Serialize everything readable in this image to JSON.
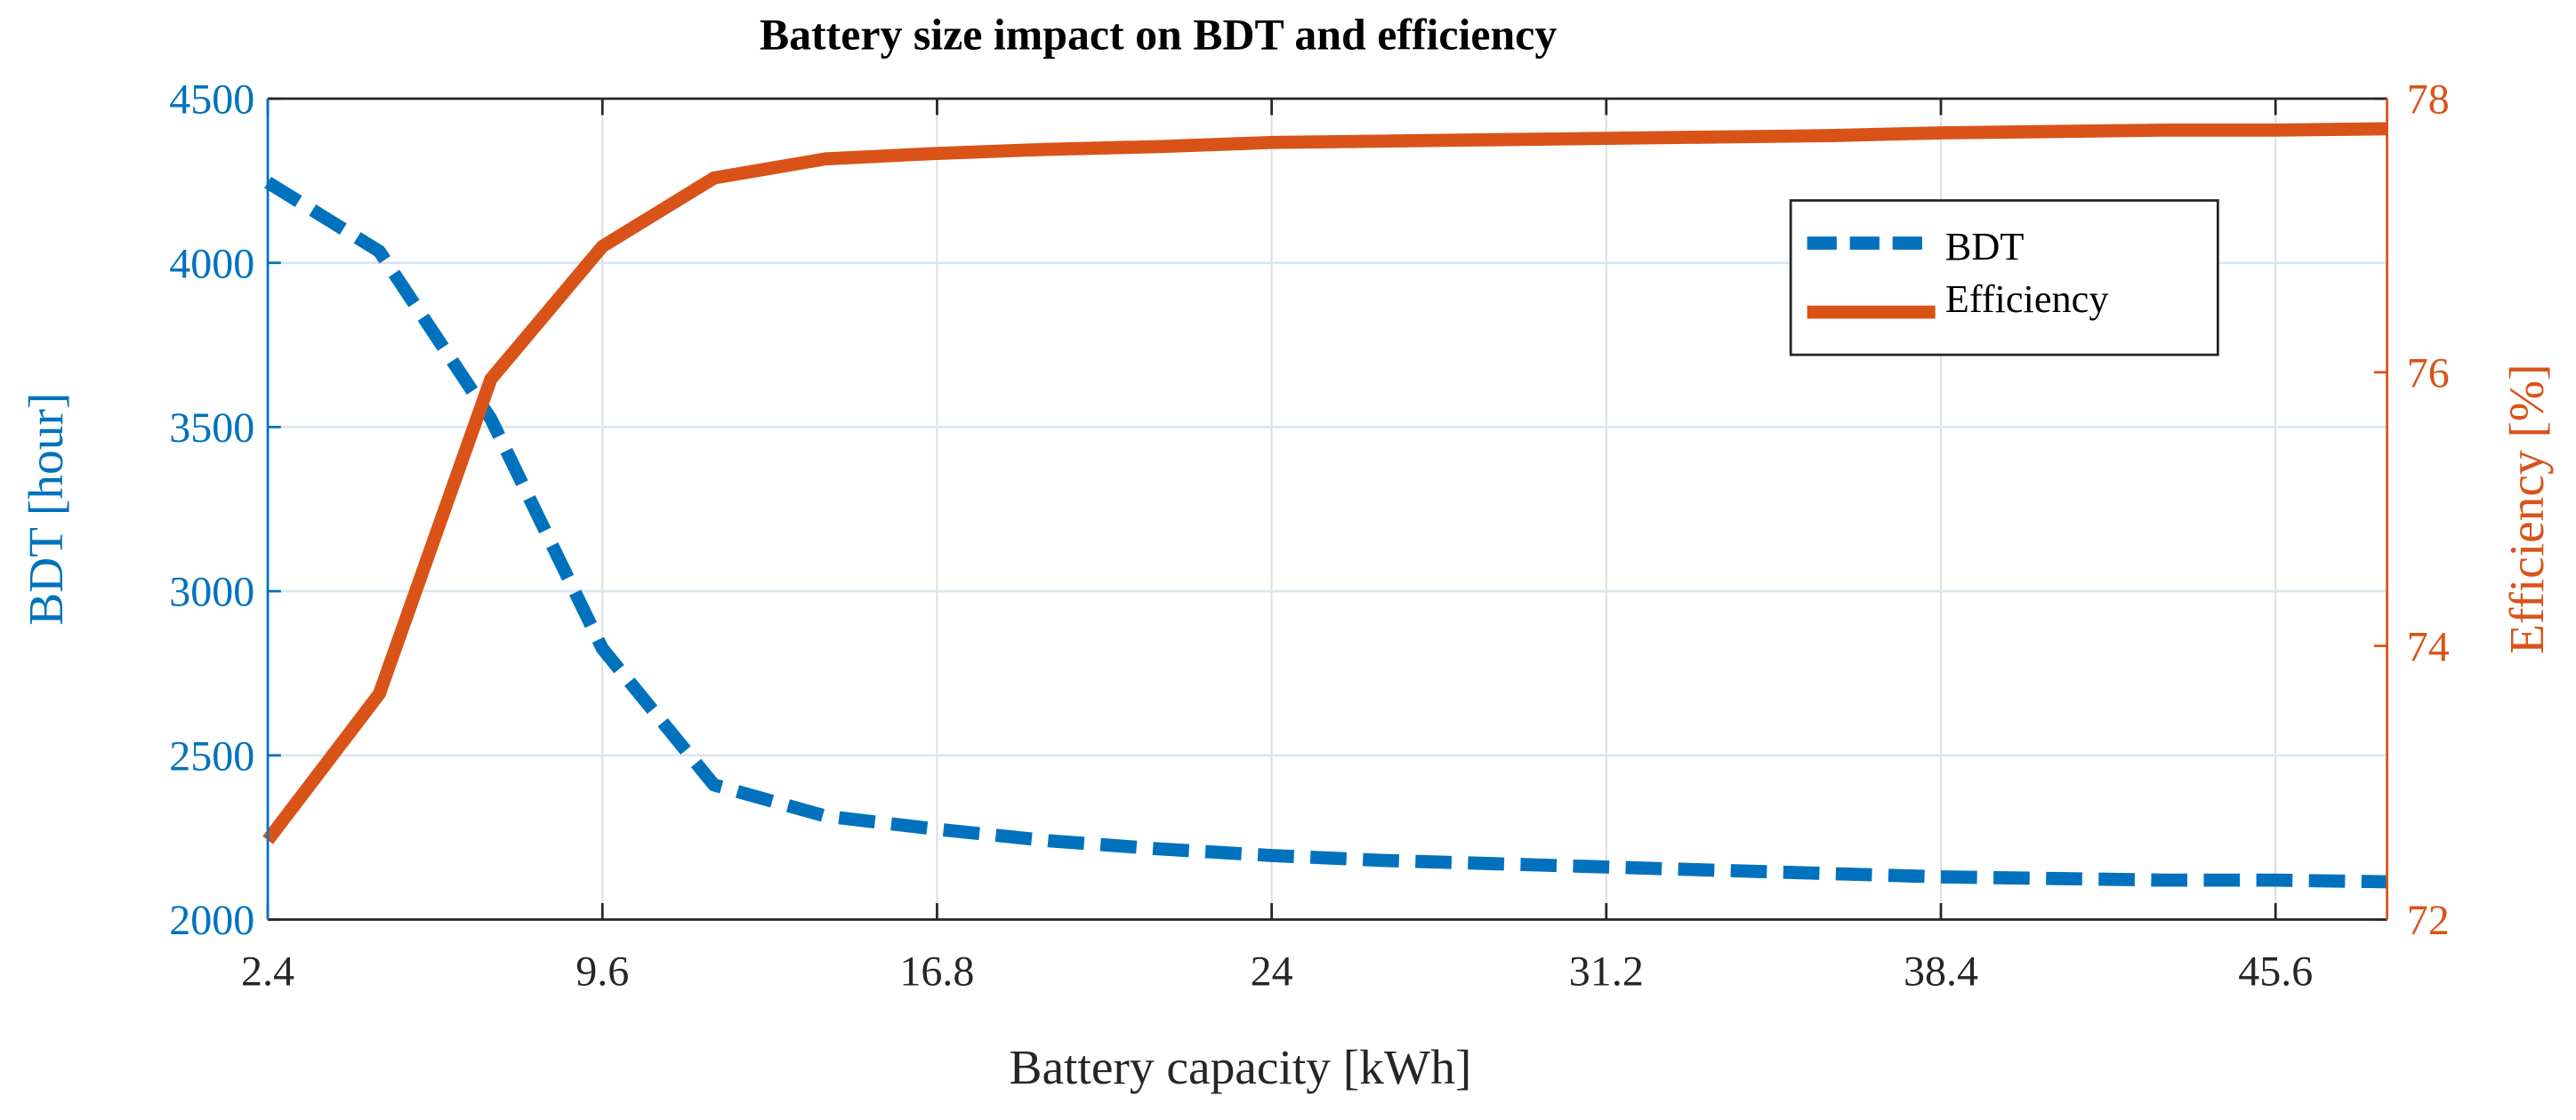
{
  "chart_data": {
    "type": "line",
    "title": "Battery size impact on BDT and efficiency",
    "xlabel": "Battery capacity [kWh]",
    "ylabel_left": "BDT [hour]",
    "ylabel_right": "Efficiency [%]",
    "xlim": [
      2.4,
      48
    ],
    "ylim_left": [
      2000,
      4500
    ],
    "ylim_right": [
      72,
      78
    ],
    "xticks": [
      "2.4",
      "9.6",
      "16.8",
      "24",
      "31.2",
      "38.4",
      "45.6"
    ],
    "yticks_left": [
      "2000",
      "2500",
      "3000",
      "3500",
      "4000",
      "4500"
    ],
    "yticks_right": [
      "72",
      "74",
      "76",
      "78"
    ],
    "grid": true,
    "legend_position": "top-right",
    "x": [
      2.4,
      4.8,
      7.2,
      9.6,
      12,
      14.4,
      16.8,
      19.2,
      21.6,
      24,
      26.4,
      28.8,
      31.2,
      33.6,
      36,
      38.4,
      40.8,
      43.2,
      45.6,
      48
    ],
    "series": [
      {
        "name": "BDT",
        "axis": "left",
        "style": "dashed",
        "color": "#0072BD",
        "values": [
          4245,
          4035,
          3525,
          2825,
          2410,
          2315,
          2275,
          2240,
          2215,
          2195,
          2180,
          2170,
          2160,
          2150,
          2140,
          2130,
          2125,
          2120,
          2120,
          2115
        ]
      },
      {
        "name": "Efficiency",
        "axis": "right",
        "style": "solid",
        "color": "#D95319",
        "values": [
          72.58,
          73.65,
          75.95,
          76.92,
          77.42,
          77.56,
          77.6,
          77.63,
          77.65,
          77.68,
          77.69,
          77.7,
          77.71,
          77.72,
          77.73,
          77.75,
          77.76,
          77.77,
          77.77,
          77.78
        ]
      }
    ]
  }
}
